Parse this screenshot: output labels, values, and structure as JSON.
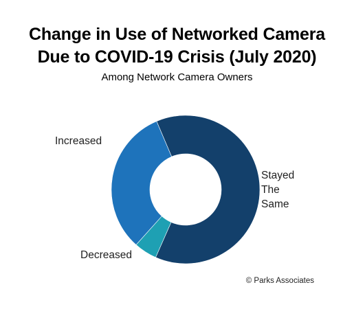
{
  "title_line1": "Change in Use of Networked Camera",
  "title_line2": "Due to COVID-19 Crisis (July 2020)",
  "subtitle": "Among Network Camera Owners",
  "credit": "© Parks Associates",
  "chart_data": {
    "type": "pie",
    "donut": true,
    "title": "Change in Use of Networked Camera Due to COVID-19 Crisis (July 2020)",
    "subtitle": "Among Network Camera Owners",
    "categories": [
      "Stayed The Same",
      "Decreased",
      "Increased"
    ],
    "values": [
      63,
      5,
      32
    ],
    "colors": [
      "#13406b",
      "#1ea0b3",
      "#1e73bb"
    ],
    "labels": {
      "stayed_line1": "Stayed",
      "stayed_line2": "The",
      "stayed_line3": "Same",
      "decreased": "Decreased",
      "increased": "Increased"
    }
  }
}
